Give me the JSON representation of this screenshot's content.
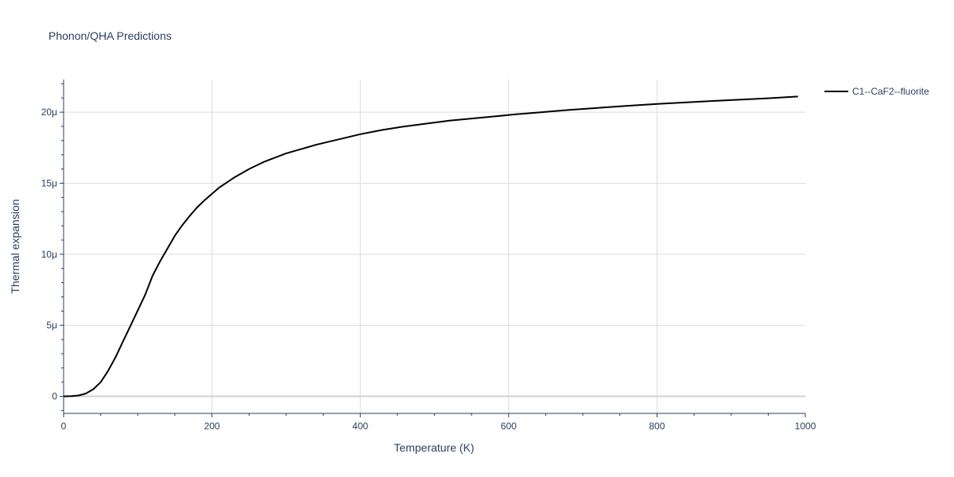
{
  "chart_data": {
    "type": "line",
    "title": "Phonon/QHA Predictions",
    "xlabel": "Temperature (K)",
    "ylabel": "Thermal expansion",
    "xlim": [
      0,
      1000
    ],
    "ylim": [
      -1.2,
      22.3
    ],
    "x_ticks": [
      0,
      200,
      400,
      600,
      800,
      1000
    ],
    "x_tick_labels": [
      "0",
      "200",
      "400",
      "600",
      "800",
      "1000"
    ],
    "y_ticks": [
      0,
      5,
      10,
      15,
      20
    ],
    "y_tick_labels": [
      "0",
      "5μ",
      "10μ",
      "15μ",
      "20μ"
    ],
    "y_unit_note": "values in units of 1e-6",
    "grid": true,
    "legend_position": "top-right",
    "series": [
      {
        "name": "C1--CaF2--fluorite",
        "color": "#000000",
        "x": [
          0,
          10,
          20,
          30,
          40,
          50,
          60,
          70,
          80,
          90,
          100,
          110,
          120,
          130,
          140,
          150,
          160,
          170,
          180,
          190,
          200,
          210,
          220,
          230,
          240,
          250,
          260,
          270,
          280,
          290,
          300,
          320,
          340,
          360,
          380,
          400,
          430,
          460,
          490,
          520,
          550,
          580,
          610,
          640,
          680,
          720,
          760,
          800,
          850,
          900,
          950,
          990
        ],
        "y": [
          0,
          0.02,
          0.06,
          0.2,
          0.5,
          1.0,
          1.8,
          2.75,
          3.85,
          4.95,
          6.05,
          7.15,
          8.5,
          9.5,
          10.4,
          11.3,
          12.05,
          12.7,
          13.3,
          13.8,
          14.25,
          14.7,
          15.05,
          15.4,
          15.7,
          16.0,
          16.25,
          16.5,
          16.7,
          16.9,
          17.1,
          17.4,
          17.7,
          17.95,
          18.2,
          18.45,
          18.75,
          19.0,
          19.2,
          19.4,
          19.55,
          19.7,
          19.85,
          19.98,
          20.15,
          20.3,
          20.45,
          20.58,
          20.72,
          20.85,
          20.98,
          21.1
        ]
      }
    ]
  }
}
